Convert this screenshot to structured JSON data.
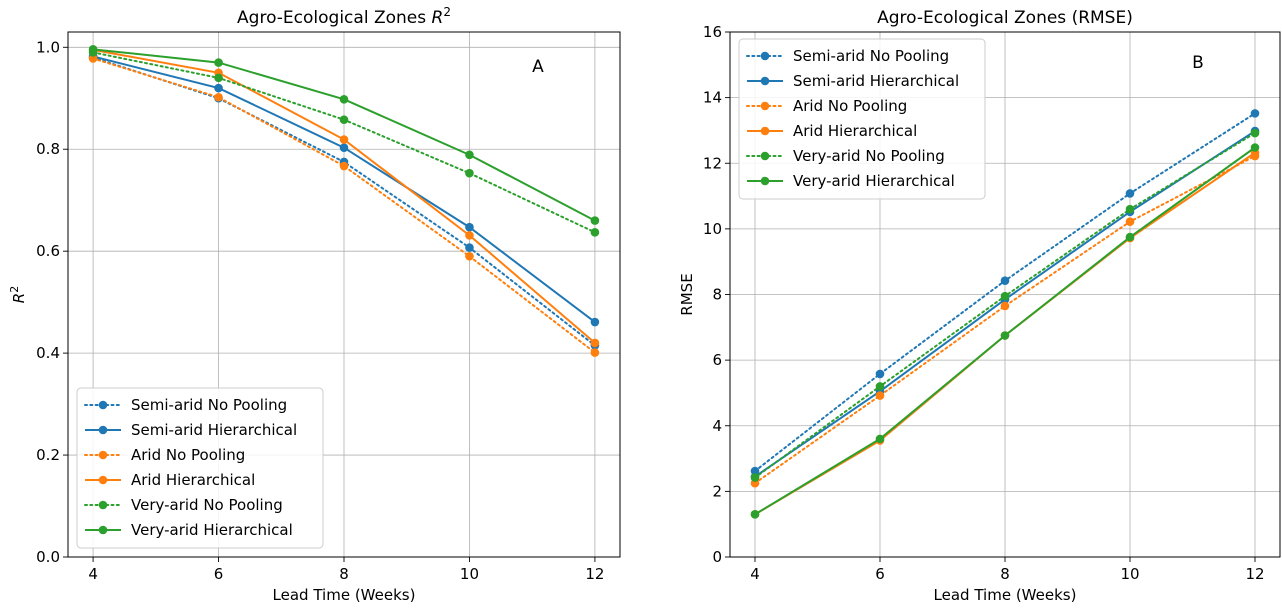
{
  "chart_data": [
    {
      "type": "line",
      "title": "Agro-Ecological Zones R²",
      "title_text": "Agro-Ecological Zones ",
      "title_math": "R",
      "title_sup": "2",
      "panel_label": "A",
      "xlabel": "Lead Time (Weeks)",
      "ylabel": "R",
      "ylabel_sup": "2",
      "x": [
        4,
        6,
        8,
        10,
        12
      ],
      "xlim": [
        3.6,
        12.4
      ],
      "ylim": [
        0.0,
        1.03
      ],
      "xticks": [
        4,
        6,
        8,
        10,
        12
      ],
      "xtick_labels": [
        "4",
        "6",
        "8",
        "10",
        "12"
      ],
      "yticks": [
        0.0,
        0.2,
        0.4,
        0.6,
        0.8,
        1.0
      ],
      "ytick_labels": [
        "0.0",
        "0.2",
        "0.4",
        "0.6",
        "0.8",
        "1.0"
      ],
      "grid": true,
      "legend_position": "lower-left",
      "series": [
        {
          "name": "Semi-arid No Pooling",
          "values": [
            0.98,
            0.9,
            0.775,
            0.607,
            0.415
          ],
          "color": "#1f77b4",
          "style": "dotted"
        },
        {
          "name": "Semi-arid Hierarchical",
          "values": [
            0.982,
            0.92,
            0.803,
            0.647,
            0.461
          ],
          "color": "#1f77b4",
          "style": "solid"
        },
        {
          "name": "Arid No Pooling",
          "values": [
            0.978,
            0.902,
            0.767,
            0.59,
            0.401
          ],
          "color": "#ff7f0e",
          "style": "dotted"
        },
        {
          "name": "Arid Hierarchical",
          "values": [
            0.995,
            0.95,
            0.819,
            0.631,
            0.42
          ],
          "color": "#ff7f0e",
          "style": "solid"
        },
        {
          "name": "Very-arid No Pooling",
          "values": [
            0.99,
            0.94,
            0.858,
            0.753,
            0.637
          ],
          "color": "#2ca02c",
          "style": "dotted"
        },
        {
          "name": "Very-arid Hierarchical",
          "values": [
            0.996,
            0.97,
            0.898,
            0.789,
            0.66
          ],
          "color": "#2ca02c",
          "style": "solid"
        }
      ]
    },
    {
      "type": "line",
      "title": "Agro-Ecological Zones (RMSE)",
      "title_text": "Agro-Ecological Zones (RMSE)",
      "title_math": "",
      "title_sup": "",
      "panel_label": "B",
      "xlabel": "Lead Time (Weeks)",
      "ylabel": "RMSE",
      "ylabel_sup": "",
      "x": [
        4,
        6,
        8,
        10,
        12
      ],
      "xlim": [
        3.6,
        12.4
      ],
      "ylim": [
        0,
        16
      ],
      "xticks": [
        4,
        6,
        8,
        10,
        12
      ],
      "xtick_labels": [
        "4",
        "6",
        "8",
        "10",
        "12"
      ],
      "yticks": [
        0,
        2,
        4,
        6,
        8,
        10,
        12,
        14,
        16
      ],
      "ytick_labels": [
        "0",
        "2",
        "4",
        "6",
        "8",
        "10",
        "12",
        "14",
        "16"
      ],
      "grid": true,
      "legend_position": "upper-left",
      "series": [
        {
          "name": "Semi-arid No Pooling",
          "values": [
            2.62,
            5.58,
            8.42,
            11.08,
            13.52
          ],
          "color": "#1f77b4",
          "style": "dotted"
        },
        {
          "name": "Semi-arid Hierarchical",
          "values": [
            2.45,
            5.05,
            7.85,
            10.52,
            12.98
          ],
          "color": "#1f77b4",
          "style": "solid"
        },
        {
          "name": "Arid No Pooling",
          "values": [
            2.25,
            4.92,
            7.65,
            10.22,
            12.22
          ],
          "color": "#ff7f0e",
          "style": "dotted"
        },
        {
          "name": "Arid Hierarchical",
          "values": [
            1.3,
            3.55,
            6.75,
            9.72,
            12.32
          ],
          "color": "#ff7f0e",
          "style": "solid"
        },
        {
          "name": "Very-arid No Pooling",
          "values": [
            2.42,
            5.2,
            7.95,
            10.6,
            12.92
          ],
          "color": "#2ca02c",
          "style": "dotted"
        },
        {
          "name": "Very-arid Hierarchical",
          "values": [
            1.3,
            3.6,
            6.75,
            9.75,
            12.48
          ],
          "color": "#2ca02c",
          "style": "solid"
        }
      ]
    }
  ]
}
